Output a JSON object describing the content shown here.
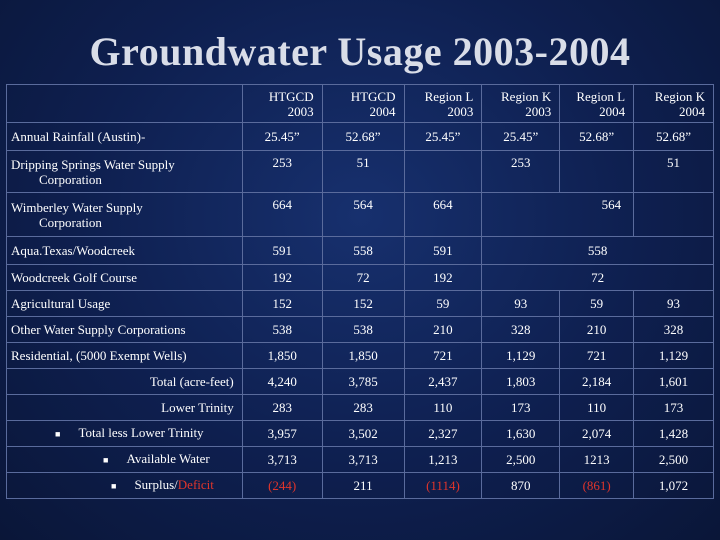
{
  "title": "Groundwater Usage 2003-2004",
  "headers": [
    [
      "HTGCD",
      "2003"
    ],
    [
      "HTGCD",
      "2004"
    ],
    [
      "Region L",
      "2003"
    ],
    [
      "Region K",
      "2003"
    ],
    [
      "Region L",
      "2004"
    ],
    [
      "Region K",
      "2004"
    ]
  ],
  "rows": {
    "rainfall": {
      "label": "Annual Rainfall (Austin)-",
      "values": [
        "25.45”",
        "52.68”",
        "25.45”",
        "25.45”",
        "52.68”",
        "52.68”"
      ]
    },
    "dripping": {
      "label1": "Dripping Springs Water Supply",
      "label2": "Corporation",
      "v1": "253",
      "v2": "51",
      "v4": "253",
      "v6": "51"
    },
    "wimberley": {
      "label1": "Wimberley Water Supply",
      "label2": "Corporation",
      "v1": "664",
      "v2": "564",
      "v3": "664",
      "v56": "564"
    },
    "aqua": {
      "label": "Aqua.Texas/Woodcreek",
      "v1": "591",
      "v2": "558",
      "v3": "591",
      "v56": "558"
    },
    "golf": {
      "label": "Woodcreek Golf Course",
      "v1": "192",
      "v2": "72",
      "v3": "192",
      "v56": "72"
    },
    "ag": {
      "label": "Agricultural Usage",
      "values": [
        "152",
        "152",
        "59",
        "93",
        "59",
        "93"
      ]
    },
    "other": {
      "label": "Other Water Supply Corporations",
      "values": [
        "538",
        "538",
        "210",
        "328",
        "210",
        "328"
      ]
    },
    "residential": {
      "label": "Residential, (5000 Exempt Wells)",
      "values": [
        "1,850",
        "1,850",
        "721",
        "1,129",
        "721",
        "1,129"
      ]
    },
    "total": {
      "label": "Total (acre-feet)",
      "values": [
        "4,240",
        "3,785",
        "2,437",
        "1,803",
        "2,184",
        "1,601"
      ]
    },
    "lower": {
      "label": "Lower Trinity",
      "values": [
        "283",
        "283",
        "110",
        "173",
        "110",
        "173"
      ]
    },
    "totalless": {
      "label": "Total less Lower Trinity",
      "values": [
        "3,957",
        "3,502",
        "2,327",
        "1,630",
        "2,074",
        "1,428"
      ]
    },
    "available": {
      "label": "Available Water",
      "values": [
        "3,713",
        "3,713",
        "1,213",
        "2,500",
        "1213",
        "2,500"
      ]
    },
    "surplus": {
      "label_a": "Surplus/",
      "label_b": "Deficit",
      "values": [
        "(244)",
        "211",
        "(1114)",
        "870",
        "(861)",
        "1,072"
      ],
      "red": [
        true,
        false,
        true,
        false,
        true,
        false
      ]
    }
  },
  "bullet": "■",
  "colors": {
    "deficit": "#e0352b"
  }
}
